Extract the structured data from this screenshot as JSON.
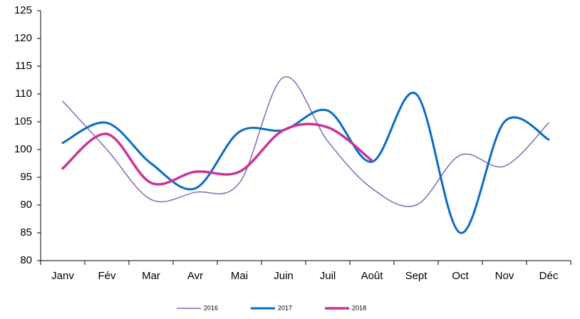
{
  "chart_data": {
    "type": "line",
    "categories": [
      "Janv",
      "Fév",
      "Mar",
      "Avr",
      "Mai",
      "Juin",
      "Juil",
      "Août",
      "Sept",
      "Oct",
      "Nov",
      "Déc"
    ],
    "series": [
      {
        "name": "2016",
        "color": "#7f6bb5",
        "values": [
          108.7,
          100,
          91,
          92.3,
          94,
          113,
          101.5,
          93,
          90,
          99,
          97,
          104.8
        ]
      },
      {
        "name": "2017",
        "color": "#0a6cc2",
        "values": [
          101.2,
          104.8,
          97.5,
          93,
          103.2,
          103.5,
          107,
          97.8,
          110,
          85,
          105,
          101.8
        ]
      },
      {
        "name": "2018",
        "color": "#c7369c",
        "values": [
          96.6,
          102.8,
          94,
          96,
          96,
          103.5,
          104,
          98,
          null,
          null,
          null,
          null
        ]
      }
    ],
    "ylim": [
      80,
      125
    ],
    "yticks": [
      80,
      85,
      90,
      95,
      100,
      105,
      110,
      115,
      120,
      125
    ],
    "smooth": true,
    "legend": "bottom"
  }
}
